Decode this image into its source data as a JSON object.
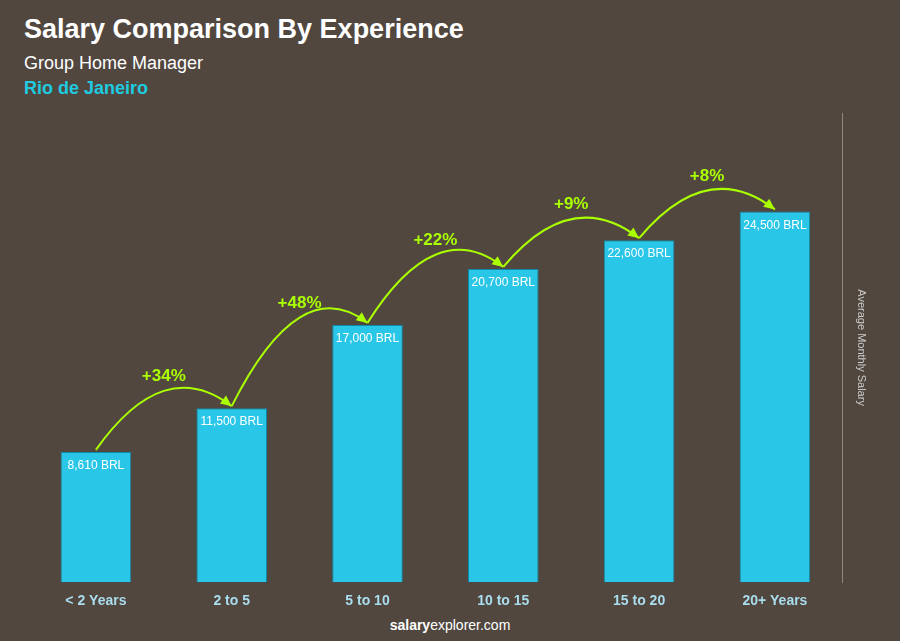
{
  "chart_data": {
    "type": "bar",
    "title": "Salary Comparison By Experience",
    "subtitle": [
      "Group Home Manager",
      "Rio de Janeiro"
    ],
    "ylabel": "Average Monthly Salary",
    "categories": [
      "< 2 Years",
      "2 to 5",
      "5 to 10",
      "10 to 15",
      "15 to 20",
      "20+ Years"
    ],
    "values": [
      8610,
      11500,
      17000,
      20700,
      22600,
      24500
    ],
    "value_labels": [
      "8,610 BRL",
      "11,500 BRL",
      "17,000 BRL",
      "20,700 BRL",
      "22,600 BRL",
      "24,500 BRL"
    ],
    "data_labels": true,
    "color": "#29c6e8",
    "ylim": [
      0,
      31000
    ],
    "tick_labels": "x",
    "grid": false,
    "annotations": [
      {
        "text": "+34%",
        "from": "< 2 Years",
        "to": "2 to 5",
        "color": "#aaff00"
      },
      {
        "text": "+48%",
        "from": "2 to 5",
        "to": "5 to 10",
        "color": "#aaff00"
      },
      {
        "text": "+22%",
        "from": "5 to 10",
        "to": "10 to 15",
        "color": "#aaff00"
      },
      {
        "text": "+9%",
        "from": "10 to 15",
        "to": "15 to 20",
        "color": "#aaff00"
      },
      {
        "text": "+8%",
        "from": "15 to 20",
        "to": "20+ Years",
        "color": "#aaff00"
      },
      {
        "text": "salary"
      },
      {
        "text": "explorer.com"
      }
    ]
  }
}
